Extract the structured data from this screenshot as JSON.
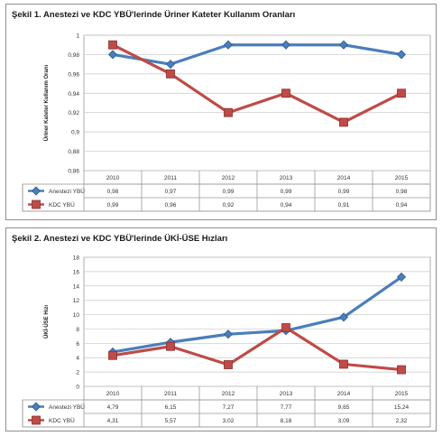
{
  "chart_data": [
    {
      "type": "line",
      "title": "Şekil 1. Anestezi ve KDC YBÜ'lerinde Üriner Kateter Kullanım Oranları",
      "ylabel": "Üriner Kateter Kullanım Oranı",
      "xlabel": "",
      "ylim": [
        0.86,
        1
      ],
      "y_ticks": [
        "0,86",
        "0,88",
        "0,9",
        "0,92",
        "0,94",
        "0,96",
        "0,98",
        "1"
      ],
      "categories": [
        "2010",
        "2011",
        "2012",
        "2013",
        "2014",
        "2015"
      ],
      "series": [
        {
          "name": "Anestezi YBÜ",
          "values": [
            0.98,
            0.97,
            0.99,
            0.99,
            0.99,
            0.98
          ],
          "labels": [
            "0,98",
            "0,97",
            "0,99",
            "0,99",
            "0,99",
            "0,98"
          ],
          "color": "#4a7ebb",
          "marker": "diamond"
        },
        {
          "name": "KDC YBÜ",
          "values": [
            0.99,
            0.96,
            0.92,
            0.94,
            0.91,
            0.94
          ],
          "labels": [
            "0,99",
            "0,96",
            "0,92",
            "0,94",
            "0,91",
            "0,94"
          ],
          "color": "#be4b48",
          "marker": "square"
        }
      ],
      "grid": true,
      "legend": "data-table"
    },
    {
      "type": "line",
      "title": "Şekil 2. Anestezi ve KDC YBÜ'lerinde ÜKİ-ÜSE Hızları",
      "ylabel": "ÜKİ-ÜSE Hızı",
      "xlabel": "",
      "ylim": [
        0,
        18
      ],
      "y_ticks": [
        "0",
        "2",
        "4",
        "6",
        "8",
        "10",
        "12",
        "14",
        "16",
        "18"
      ],
      "categories": [
        "2010",
        "2011",
        "2012",
        "2013",
        "2014",
        "2015"
      ],
      "series": [
        {
          "name": "Anestezi YBÜ",
          "values": [
            4.79,
            6.15,
            7.27,
            7.77,
            9.65,
            15.24
          ],
          "labels": [
            "4,79",
            "6,15",
            "7,27",
            "7,77",
            "9,65",
            "15,24"
          ],
          "color": "#4a7ebb",
          "marker": "diamond"
        },
        {
          "name": "KDC YBÜ",
          "values": [
            4.31,
            5.57,
            3.02,
            8.18,
            3.09,
            2.32
          ],
          "labels": [
            "4,31",
            "5,57",
            "3,02",
            "8,18",
            "3,09",
            "2,32"
          ],
          "color": "#be4b48",
          "marker": "square"
        }
      ],
      "grid": true,
      "legend": "data-table"
    }
  ]
}
